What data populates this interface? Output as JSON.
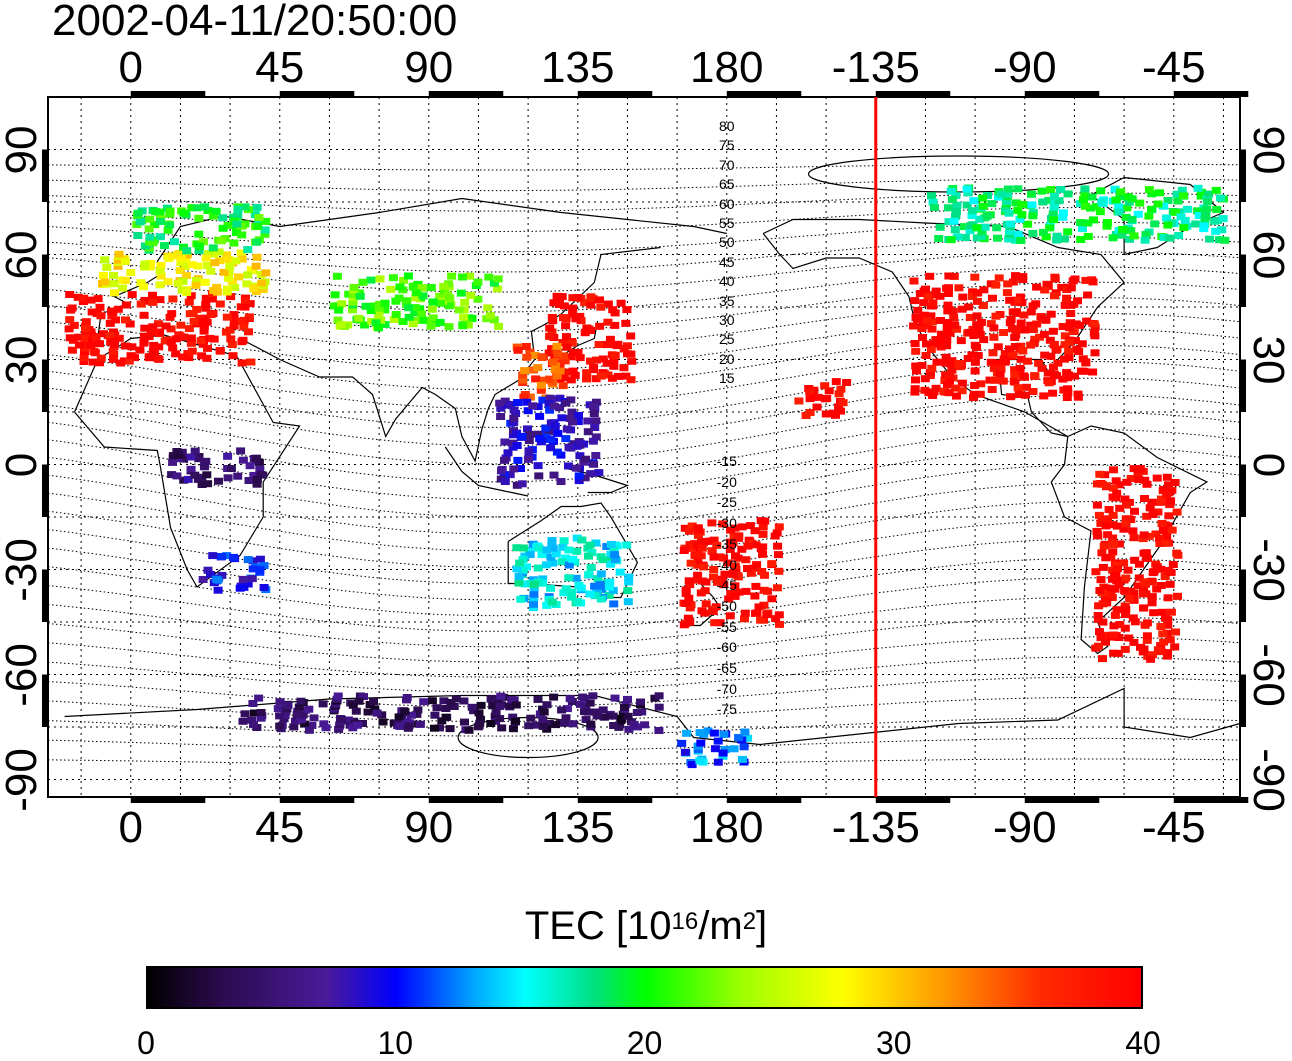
{
  "header": {
    "timestamp": "2002-04-11/20:50:00"
  },
  "axes": {
    "top_lon_ticks": [
      "0",
      "45",
      "90",
      "135",
      "180",
      "-135",
      "-90",
      "-45"
    ],
    "bottom_lon_ticks": [
      "0",
      "45",
      "90",
      "135",
      "180",
      "-135",
      "-90",
      "-45"
    ],
    "left_lat_ticks": [
      "90",
      "60",
      "30",
      "0",
      "-30",
      "-60",
      "-90"
    ],
    "right_lat_ticks": [
      "90",
      "60",
      "30",
      "0",
      "-30",
      "-60",
      "-90"
    ]
  },
  "map": {
    "lon_range": [
      -25,
      335
    ],
    "lat_range": [
      -95,
      105
    ],
    "terminator_lon": 225,
    "terminator_color": "#ff0000",
    "contour_labels_north": [
      "80",
      "75",
      "70",
      "65",
      "60",
      "55",
      "50",
      "45",
      "40",
      "35",
      "30",
      "25",
      "20",
      "15"
    ],
    "contour_labels_south": [
      "-15",
      "-20",
      "-25",
      "-30",
      "-35",
      "-40",
      "-45",
      "-50",
      "-55",
      "-60",
      "-65",
      "-70",
      "-75"
    ]
  },
  "colorbar": {
    "title": "TEC  [10",
    "title_sup1": "16",
    "title_mid": "/m",
    "title_sup2": "2",
    "title_end": "]",
    "ticks": [
      "0",
      "10",
      "20",
      "30",
      "40"
    ],
    "range": [
      0,
      40
    ]
  },
  "chart_data": {
    "type": "heatmap",
    "title": "2002-04-11/20:50:00",
    "xlabel": "",
    "ylabel": "",
    "xlim": [
      -25,
      335
    ],
    "ylim": [
      -95,
      105
    ],
    "colorbar_label": "TEC [10^16/m^2]",
    "value_range": [
      0,
      40
    ],
    "regions": [
      {
        "lon": [
          -20,
          35
        ],
        "lat": [
          30,
          50
        ],
        "tec": 40
      },
      {
        "lon": [
          -10,
          40
        ],
        "lat": [
          50,
          62
        ],
        "tec": 28
      },
      {
        "lon": [
          0,
          40
        ],
        "lat": [
          62,
          75
        ],
        "tec": 20
      },
      {
        "lon": [
          60,
          110
        ],
        "lat": [
          40,
          55
        ],
        "tec": 22
      },
      {
        "lon": [
          125,
          150
        ],
        "lat": [
          25,
          50
        ],
        "tec": 40
      },
      {
        "lon": [
          115,
          130
        ],
        "lat": [
          20,
          35
        ],
        "tec": 35
      },
      {
        "lon": [
          110,
          140
        ],
        "lat": [
          -5,
          20
        ],
        "tec": 8
      },
      {
        "lon": [
          115,
          150
        ],
        "lat": [
          -40,
          -20
        ],
        "tec": 15
      },
      {
        "lon": [
          165,
          195
        ],
        "lat": [
          -45,
          -15
        ],
        "tec": 40
      },
      {
        "lon": [
          200,
          215
        ],
        "lat": [
          15,
          25
        ],
        "tec": 40
      },
      {
        "lon": [
          235,
          290
        ],
        "lat": [
          20,
          55
        ],
        "tec": 40
      },
      {
        "lon": [
          290,
          315
        ],
        "lat": [
          -55,
          0
        ],
        "tec": 40
      },
      {
        "lon": [
          20,
          40
        ],
        "lat": [
          -35,
          -25
        ],
        "tec": 10
      },
      {
        "lon": [
          10,
          40
        ],
        "lat": [
          -5,
          5
        ],
        "tec": 5
      },
      {
        "lon": [
          30,
          160
        ],
        "lat": [
          -75,
          -65
        ],
        "tec": 4
      },
      {
        "lon": [
          165,
          185
        ],
        "lat": [
          -85,
          -75
        ],
        "tec": 12
      },
      {
        "lon": [
          240,
          330
        ],
        "lat": [
          65,
          80
        ],
        "tec": 18
      }
    ]
  }
}
